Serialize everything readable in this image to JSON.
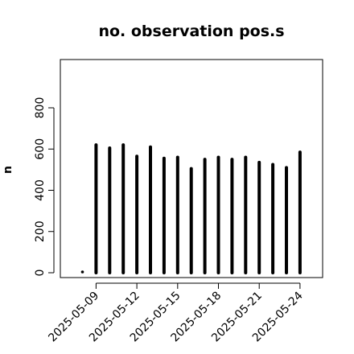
{
  "chart_data": {
    "type": "bar",
    "title": "no. observation pos.s",
    "xlabel": "",
    "ylabel": "n",
    "ylim": [
      0,
      1000
    ],
    "y_ticks": [
      0,
      200,
      400,
      600,
      800
    ],
    "x_tick_labels": [
      {
        "label": "2025-05-09",
        "color": "#000000"
      },
      {
        "label": "2025-05-12",
        "color": "#000000"
      },
      {
        "label": "2025-05-15",
        "color": "#2e8b2e"
      },
      {
        "label": "2025-05-18",
        "color": "#000000"
      },
      {
        "label": "2025-05-21",
        "color": "#000000"
      },
      {
        "label": "2025-05-24",
        "color": "#000000"
      }
    ],
    "categories": [
      "2025-05-08",
      "2025-05-09",
      "2025-05-10",
      "2025-05-11",
      "2025-05-12",
      "2025-05-13",
      "2025-05-14",
      "2025-05-15",
      "2025-05-16",
      "2025-05-17",
      "2025-05-18",
      "2025-05-19",
      "2025-05-20",
      "2025-05-21",
      "2025-05-22",
      "2025-05-23",
      "2025-05-24"
    ],
    "values": [
      0,
      620,
      605,
      620,
      565,
      610,
      555,
      560,
      505,
      550,
      560,
      550,
      560,
      535,
      525,
      510,
      585
    ],
    "colors": {
      "bars": "#000000",
      "highlight_tick": "#2e8b2e"
    }
  }
}
